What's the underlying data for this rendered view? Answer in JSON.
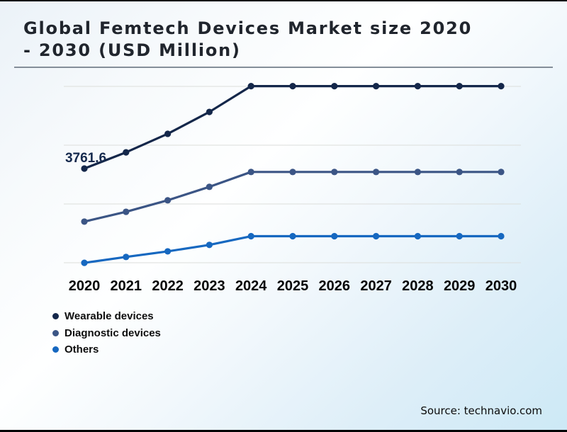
{
  "header": {
    "title_line1": "Global Femtech Devices Market size 2020",
    "title_line2": "- 2030 (USD Million)"
  },
  "footer": {
    "source": "Source: technavio.com"
  },
  "legend": {
    "items": [
      {
        "label": "Wearable devices",
        "color": "#14274a"
      },
      {
        "label": "Diagnostic devices",
        "color": "#3b5585"
      },
      {
        "label": "Others",
        "color": "#1668c0"
      }
    ]
  },
  "chart_data": {
    "type": "line",
    "title": "Global Femtech Devices Market size 2020 - 2030 (USD Million)",
    "xlabel": "",
    "ylabel": "",
    "categories": [
      "2020",
      "2021",
      "2022",
      "2023",
      "2024",
      "2025",
      "2026",
      "2027",
      "2028",
      "2029",
      "2030"
    ],
    "series": [
      {
        "name": "Wearable devices",
        "color": "#14274a",
        "values": [
          3761.6,
          4340,
          5000,
          5780,
          6700,
          6700,
          6700,
          6700,
          6700,
          6700,
          6700
        ]
      },
      {
        "name": "Diagnostic devices",
        "color": "#3b5585",
        "values": [
          1870,
          2220,
          2630,
          3110,
          3640,
          3640,
          3640,
          3640,
          3640,
          3640,
          3640
        ]
      },
      {
        "name": "Others",
        "color": "#1668c0",
        "values": [
          400,
          610,
          810,
          1040,
          1350,
          1350,
          1350,
          1350,
          1350,
          1350,
          1350
        ]
      }
    ],
    "data_labels": [
      {
        "series": "Wearable devices",
        "category": "2020",
        "text": "3761.6"
      }
    ],
    "ylim": [
      0,
      7000
    ],
    "grid": "horizontal",
    "legend_position": "bottom-left"
  }
}
